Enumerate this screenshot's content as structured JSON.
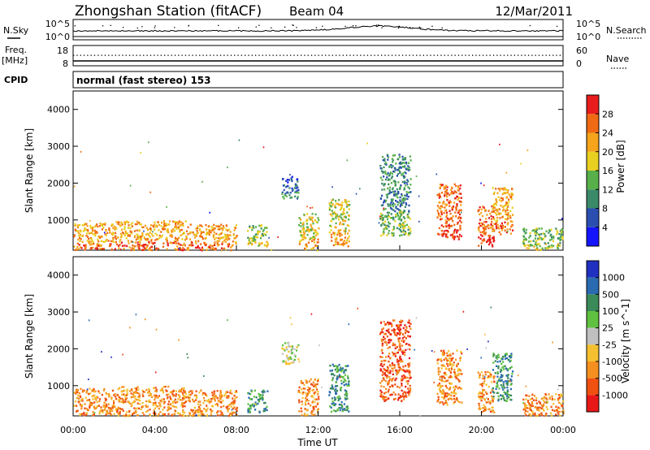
{
  "header": {
    "station": "Zhongshan Station (fitACF)",
    "beam": "Beam 04",
    "date": "12/Mar/2011"
  },
  "panels": {
    "nsky": {
      "label": "N.Sky",
      "ticks_left": [
        "10^5",
        "10^0"
      ],
      "ticks_right": [
        "10^5",
        "10^0"
      ],
      "right_label": "N.Search"
    },
    "freq": {
      "label": "Freq.",
      "unit": "[MHz]",
      "ticks_left": [
        "18",
        "8"
      ],
      "ticks_right": [
        "60",
        "0"
      ],
      "right_label": "Nave"
    },
    "cpid": {
      "label": "CPID",
      "value": "normal (fast stereo) 153"
    }
  },
  "chart_data": [
    {
      "type": "heatmap",
      "title": "",
      "ylabel": "Slant Range [km]",
      "xlabel": "",
      "ylim": [
        180,
        4500
      ],
      "xlim": [
        0,
        24
      ],
      "yticks": [
        "1000",
        "2000",
        "3000",
        "4000"
      ],
      "colorbar": {
        "label": "Power [dB]",
        "ticks": [
          "4",
          "8",
          "12",
          "16",
          "20",
          "24",
          "28"
        ],
        "colors": [
          "#1414ff",
          "#2a4fb0",
          "#3a8a6a",
          "#58b04a",
          "#e8d020",
          "#f5a41c",
          "#f06a14",
          "#e81c1c"
        ]
      },
      "clusters": [
        {
          "t0": 0.0,
          "t1": 2.0,
          "r0": 200,
          "r1": 950,
          "level": 5
        },
        {
          "t0": 2.0,
          "t1": 5.5,
          "r0": 200,
          "r1": 1000,
          "level": 5
        },
        {
          "t0": 5.5,
          "t1": 8.0,
          "r0": 200,
          "r1": 900,
          "level": 5
        },
        {
          "t0": 8.5,
          "t1": 9.5,
          "r0": 300,
          "r1": 900,
          "level": 3
        },
        {
          "t0": 10.2,
          "t1": 11.0,
          "r0": 1600,
          "r1": 2200,
          "level": 1
        },
        {
          "t0": 11.0,
          "t1": 12.0,
          "r0": 200,
          "r1": 1200,
          "level": 4
        },
        {
          "t0": 12.5,
          "t1": 13.5,
          "r0": 300,
          "r1": 1600,
          "level": 4
        },
        {
          "t0": 15.0,
          "t1": 16.5,
          "r0": 600,
          "r1": 2800,
          "level": 2
        },
        {
          "t0": 17.8,
          "t1": 19.0,
          "r0": 500,
          "r1": 2000,
          "level": 6
        },
        {
          "t0": 19.8,
          "t1": 20.6,
          "r0": 300,
          "r1": 1400,
          "level": 6
        },
        {
          "t0": 20.5,
          "t1": 21.5,
          "r0": 600,
          "r1": 1900,
          "level": 5
        },
        {
          "t0": 22.0,
          "t1": 24.0,
          "r0": 200,
          "r1": 800,
          "level": 3
        }
      ]
    },
    {
      "type": "heatmap",
      "title": "",
      "ylabel": "Slant Range [km]",
      "xlabel": "Time UT",
      "ylim": [
        180,
        4500
      ],
      "xlim": [
        0,
        24
      ],
      "yticks": [
        "1000",
        "2000",
        "3000",
        "4000"
      ],
      "xticks": [
        "00:00",
        "04:00",
        "08:00",
        "12:00",
        "16:00",
        "20:00",
        "00:00"
      ],
      "colorbar": {
        "label": "Velocity [m s^-1]",
        "ticks": [
          "1000",
          "500",
          "100",
          "25",
          "-25",
          "-100",
          "-500",
          "-1000"
        ],
        "colors": [
          "#2030c0",
          "#2a6ab0",
          "#3a8a5a",
          "#60c040",
          "#c0c0c0",
          "#f5c030",
          "#f59020",
          "#f05010",
          "#e81818"
        ]
      },
      "clusters": [
        {
          "t0": 0.0,
          "t1": 2.0,
          "r0": 200,
          "r1": 950,
          "level": 6
        },
        {
          "t0": 2.0,
          "t1": 5.5,
          "r0": 200,
          "r1": 1000,
          "level": 6
        },
        {
          "t0": 5.5,
          "t1": 8.0,
          "r0": 200,
          "r1": 900,
          "level": 6
        },
        {
          "t0": 8.5,
          "t1": 9.5,
          "r0": 300,
          "r1": 900,
          "level": 2
        },
        {
          "t0": 10.2,
          "t1": 11.0,
          "r0": 1600,
          "r1": 2200,
          "level": 4
        },
        {
          "t0": 11.0,
          "t1": 12.0,
          "r0": 200,
          "r1": 1200,
          "level": 6
        },
        {
          "t0": 12.5,
          "t1": 13.5,
          "r0": 300,
          "r1": 1600,
          "level": 2
        },
        {
          "t0": 15.0,
          "t1": 16.5,
          "r0": 600,
          "r1": 2800,
          "level": 7
        },
        {
          "t0": 17.8,
          "t1": 19.0,
          "r0": 500,
          "r1": 2000,
          "level": 6
        },
        {
          "t0": 19.8,
          "t1": 20.6,
          "r0": 300,
          "r1": 1400,
          "level": 6
        },
        {
          "t0": 20.5,
          "t1": 21.5,
          "r0": 600,
          "r1": 1900,
          "level": 2
        },
        {
          "t0": 22.0,
          "t1": 24.0,
          "r0": 200,
          "r1": 800,
          "level": 6
        }
      ]
    }
  ]
}
